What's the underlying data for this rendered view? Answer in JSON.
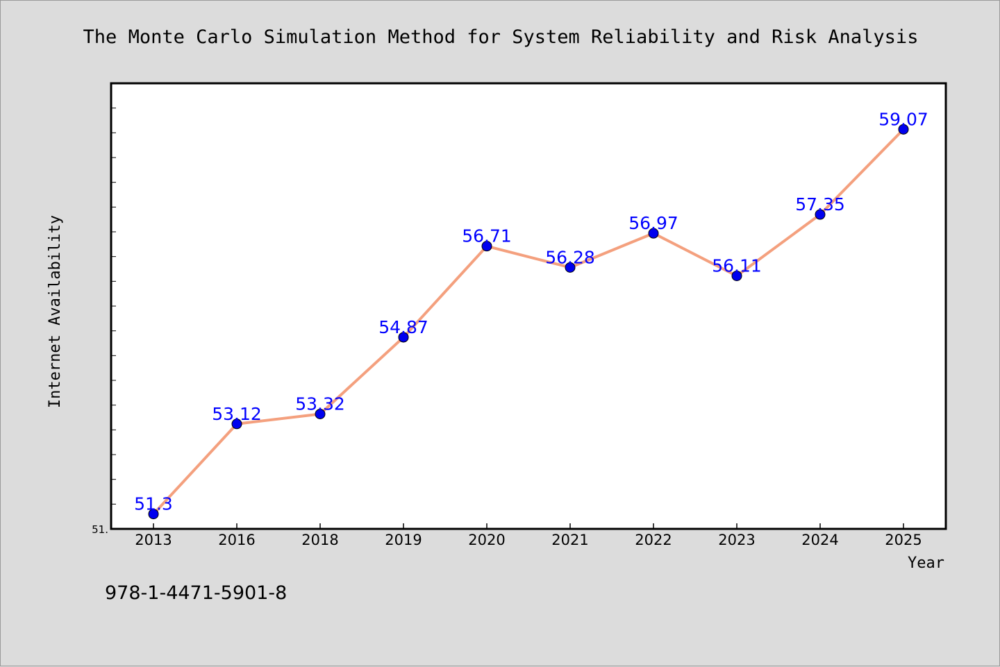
{
  "note": "978-1-4471-5901-8",
  "chart_data": {
    "type": "line",
    "title": "The Monte Carlo Simulation Method for System Reliability and Risk Analysis",
    "xlabel": "Year",
    "ylabel": "Internet Availability",
    "categories": [
      "2013",
      "2016",
      "2018",
      "2019",
      "2020",
      "2021",
      "2022",
      "2023",
      "2024",
      "2025"
    ],
    "series": [
      {
        "values": [
          51.3,
          53.12,
          53.32,
          54.87,
          56.71,
          56.28,
          56.97,
          56.11,
          57.35,
          59.07
        ],
        "labels": [
          "51.3",
          "53.12",
          "53.32",
          "54.87",
          "56.71",
          "56.28",
          "56.97",
          "56.11",
          "57.35",
          "59.07"
        ],
        "line_color": "#f4a07e",
        "marker_color": "#0000ee"
      }
    ],
    "ylim": [
      51.0,
      60.0
    ],
    "yticks_labeled": [
      "51."
    ],
    "grid": false,
    "legend": "none"
  }
}
